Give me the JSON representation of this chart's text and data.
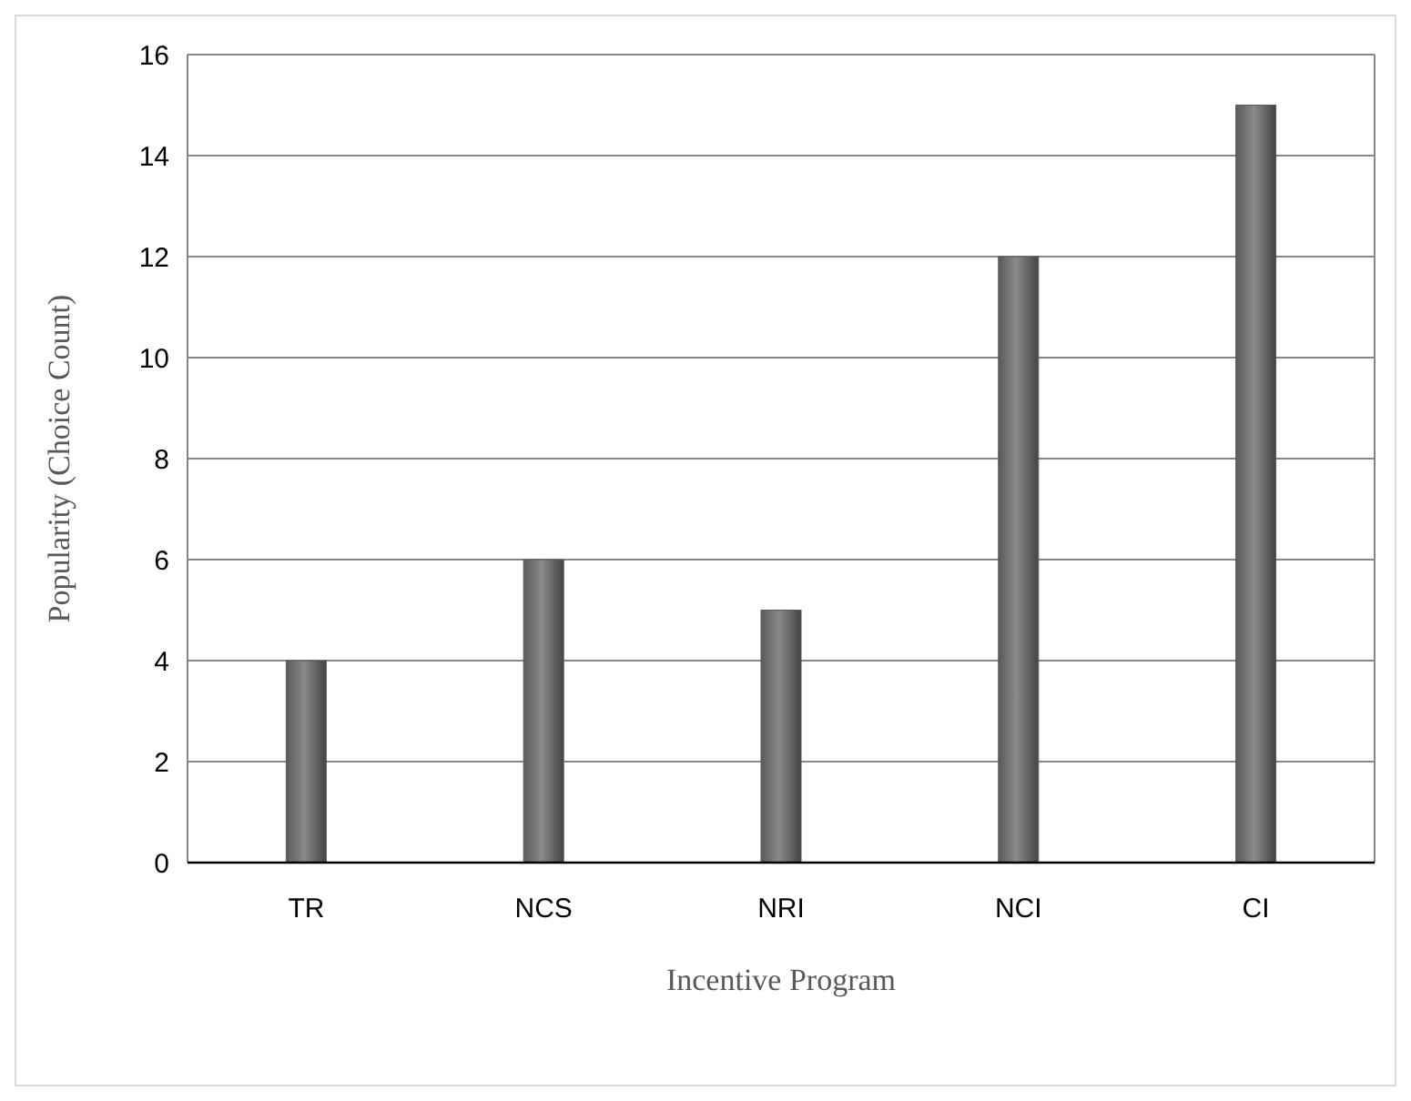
{
  "chart_data": {
    "type": "bar",
    "xlabel": "Incentive Program",
    "ylabel": "Popularity (Choice Count)",
    "categories": [
      "TR",
      "NCS",
      "NRI",
      "NCI",
      "CI"
    ],
    "values": [
      4,
      6,
      5,
      12,
      15
    ],
    "color": "#5a5a5a",
    "ylim": [
      0,
      16
    ],
    "yticks": [
      0,
      2,
      4,
      6,
      8,
      10,
      12,
      14,
      16
    ],
    "grid": "y"
  }
}
